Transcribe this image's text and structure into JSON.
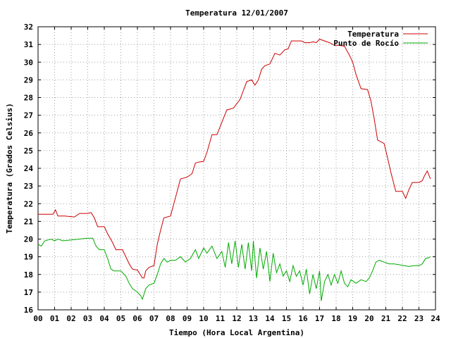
{
  "chart_data": {
    "type": "line",
    "title": "Temperatura 12/01/2007",
    "xlabel": "Tiempo (Hora Local Argentina)",
    "ylabel": "Temperatura (Grados Celsius)",
    "xlim": [
      0,
      24
    ],
    "ylim": [
      16,
      32
    ],
    "x_ticks": [
      "00",
      "01",
      "02",
      "03",
      "04",
      "05",
      "06",
      "07",
      "08",
      "09",
      "10",
      "11",
      "12",
      "13",
      "14",
      "15",
      "16",
      "17",
      "18",
      "19",
      "20",
      "21",
      "22",
      "23",
      "24"
    ],
    "y_ticks": [
      "16",
      "17",
      "18",
      "19",
      "20",
      "21",
      "22",
      "23",
      "24",
      "25",
      "26",
      "27",
      "28",
      "29",
      "30",
      "31",
      "32"
    ],
    "grid": true,
    "legend_position": "top-right",
    "series": [
      {
        "name": "Temperatura",
        "color": "#cc0000",
        "points": [
          [
            0.0,
            21.4
          ],
          [
            0.5,
            21.4
          ],
          [
            0.9,
            21.4
          ],
          [
            1.05,
            21.65
          ],
          [
            1.2,
            21.3
          ],
          [
            1.6,
            21.3
          ],
          [
            2.2,
            21.25
          ],
          [
            2.5,
            21.45
          ],
          [
            3.0,
            21.45
          ],
          [
            3.2,
            21.5
          ],
          [
            3.4,
            21.2
          ],
          [
            3.6,
            20.7
          ],
          [
            4.0,
            20.7
          ],
          [
            4.2,
            20.3
          ],
          [
            4.5,
            19.8
          ],
          [
            4.7,
            19.4
          ],
          [
            5.1,
            19.4
          ],
          [
            5.3,
            19.0
          ],
          [
            5.5,
            18.6
          ],
          [
            5.7,
            18.3
          ],
          [
            6.0,
            18.25
          ],
          [
            6.2,
            17.95
          ],
          [
            6.3,
            17.8
          ],
          [
            6.4,
            17.8
          ],
          [
            6.5,
            18.2
          ],
          [
            6.7,
            18.4
          ],
          [
            7.0,
            18.5
          ],
          [
            7.2,
            19.7
          ],
          [
            7.4,
            20.5
          ],
          [
            7.6,
            21.2
          ],
          [
            8.0,
            21.3
          ],
          [
            8.2,
            22.0
          ],
          [
            8.4,
            22.7
          ],
          [
            8.6,
            23.4
          ],
          [
            9.0,
            23.5
          ],
          [
            9.3,
            23.7
          ],
          [
            9.5,
            24.3
          ],
          [
            9.7,
            24.35
          ],
          [
            10.0,
            24.4
          ],
          [
            10.2,
            24.9
          ],
          [
            10.5,
            25.9
          ],
          [
            10.8,
            25.9
          ],
          [
            11.1,
            26.6
          ],
          [
            11.4,
            27.3
          ],
          [
            11.8,
            27.4
          ],
          [
            12.2,
            27.9
          ],
          [
            12.4,
            28.4
          ],
          [
            12.6,
            28.9
          ],
          [
            12.9,
            29.0
          ],
          [
            13.1,
            28.7
          ],
          [
            13.3,
            29.0
          ],
          [
            13.5,
            29.6
          ],
          [
            13.7,
            29.8
          ],
          [
            14.0,
            29.9
          ],
          [
            14.3,
            30.5
          ],
          [
            14.6,
            30.4
          ],
          [
            14.9,
            30.7
          ],
          [
            15.1,
            30.75
          ],
          [
            15.3,
            31.2
          ],
          [
            15.6,
            31.2
          ],
          [
            15.9,
            31.2
          ],
          [
            16.1,
            31.1
          ],
          [
            16.4,
            31.1
          ],
          [
            16.6,
            31.15
          ],
          [
            16.8,
            31.1
          ],
          [
            17.0,
            31.3
          ],
          [
            17.3,
            31.2
          ],
          [
            17.6,
            31.1
          ],
          [
            17.9,
            30.95
          ],
          [
            18.2,
            30.95
          ],
          [
            18.5,
            30.9
          ],
          [
            18.8,
            30.4
          ],
          [
            19.0,
            30.0
          ],
          [
            19.2,
            29.3
          ],
          [
            19.5,
            28.5
          ],
          [
            19.9,
            28.45
          ],
          [
            20.1,
            27.8
          ],
          [
            20.3,
            26.8
          ],
          [
            20.5,
            25.6
          ],
          [
            20.9,
            25.4
          ],
          [
            21.1,
            24.6
          ],
          [
            21.3,
            23.8
          ],
          [
            21.6,
            22.7
          ],
          [
            22.0,
            22.7
          ],
          [
            22.2,
            22.3
          ],
          [
            22.4,
            22.8
          ],
          [
            22.6,
            23.2
          ],
          [
            23.0,
            23.2
          ],
          [
            23.2,
            23.3
          ],
          [
            23.35,
            23.6
          ],
          [
            23.5,
            23.85
          ],
          [
            23.65,
            23.5
          ],
          [
            23.7,
            23.4
          ]
        ]
      },
      {
        "name": "Punto de Rocío",
        "color": "#00aa00",
        "points": [
          [
            0.0,
            19.7
          ],
          [
            0.2,
            19.6
          ],
          [
            0.4,
            19.9
          ],
          [
            0.6,
            19.95
          ],
          [
            0.8,
            20.0
          ],
          [
            1.0,
            19.9
          ],
          [
            1.2,
            20.0
          ],
          [
            1.5,
            19.9
          ],
          [
            2.0,
            19.95
          ],
          [
            2.5,
            20.0
          ],
          [
            3.0,
            20.05
          ],
          [
            3.3,
            20.05
          ],
          [
            3.5,
            19.6
          ],
          [
            3.7,
            19.4
          ],
          [
            4.0,
            19.4
          ],
          [
            4.2,
            18.9
          ],
          [
            4.4,
            18.3
          ],
          [
            4.6,
            18.2
          ],
          [
            5.0,
            18.2
          ],
          [
            5.3,
            17.9
          ],
          [
            5.5,
            17.5
          ],
          [
            5.7,
            17.2
          ],
          [
            6.0,
            17.0
          ],
          [
            6.2,
            16.8
          ],
          [
            6.3,
            16.6
          ],
          [
            6.5,
            17.2
          ],
          [
            6.7,
            17.4
          ],
          [
            7.0,
            17.5
          ],
          [
            7.2,
            18.0
          ],
          [
            7.4,
            18.6
          ],
          [
            7.6,
            18.9
          ],
          [
            7.8,
            18.7
          ],
          [
            8.0,
            18.8
          ],
          [
            8.3,
            18.8
          ],
          [
            8.6,
            19.0
          ],
          [
            8.9,
            18.7
          ],
          [
            9.2,
            18.9
          ],
          [
            9.5,
            19.4
          ],
          [
            9.7,
            18.9
          ],
          [
            10.0,
            19.5
          ],
          [
            10.2,
            19.2
          ],
          [
            10.5,
            19.6
          ],
          [
            10.8,
            18.9
          ],
          [
            11.1,
            19.3
          ],
          [
            11.3,
            18.4
          ],
          [
            11.5,
            19.8
          ],
          [
            11.7,
            18.6
          ],
          [
            11.9,
            19.9
          ],
          [
            12.1,
            18.4
          ],
          [
            12.3,
            19.7
          ],
          [
            12.5,
            18.3
          ],
          [
            12.7,
            19.8
          ],
          [
            12.9,
            18.2
          ],
          [
            13.0,
            19.9
          ],
          [
            13.2,
            17.8
          ],
          [
            13.4,
            19.5
          ],
          [
            13.6,
            18.3
          ],
          [
            13.8,
            19.3
          ],
          [
            14.0,
            17.6
          ],
          [
            14.2,
            19.2
          ],
          [
            14.4,
            18.1
          ],
          [
            14.6,
            18.6
          ],
          [
            14.8,
            17.9
          ],
          [
            15.0,
            18.2
          ],
          [
            15.2,
            17.6
          ],
          [
            15.4,
            18.5
          ],
          [
            15.6,
            17.9
          ],
          [
            15.8,
            18.2
          ],
          [
            16.0,
            17.4
          ],
          [
            16.2,
            18.3
          ],
          [
            16.4,
            16.9
          ],
          [
            16.6,
            18.0
          ],
          [
            16.8,
            17.2
          ],
          [
            17.0,
            18.2
          ],
          [
            17.1,
            16.5
          ],
          [
            17.3,
            17.6
          ],
          [
            17.5,
            18.0
          ],
          [
            17.7,
            17.4
          ],
          [
            17.9,
            18.0
          ],
          [
            18.1,
            17.5
          ],
          [
            18.3,
            18.2
          ],
          [
            18.5,
            17.5
          ],
          [
            18.7,
            17.3
          ],
          [
            18.9,
            17.7
          ],
          [
            19.2,
            17.5
          ],
          [
            19.5,
            17.7
          ],
          [
            19.8,
            17.6
          ],
          [
            20.0,
            17.8
          ],
          [
            20.2,
            18.2
          ],
          [
            20.4,
            18.7
          ],
          [
            20.6,
            18.8
          ],
          [
            20.9,
            18.7
          ],
          [
            21.2,
            18.6
          ],
          [
            21.5,
            18.6
          ],
          [
            21.8,
            18.55
          ],
          [
            22.1,
            18.5
          ],
          [
            22.4,
            18.45
          ],
          [
            22.7,
            18.5
          ],
          [
            23.0,
            18.5
          ],
          [
            23.2,
            18.6
          ],
          [
            23.4,
            18.9
          ],
          [
            23.6,
            18.95
          ],
          [
            23.7,
            19.0
          ]
        ]
      }
    ]
  }
}
